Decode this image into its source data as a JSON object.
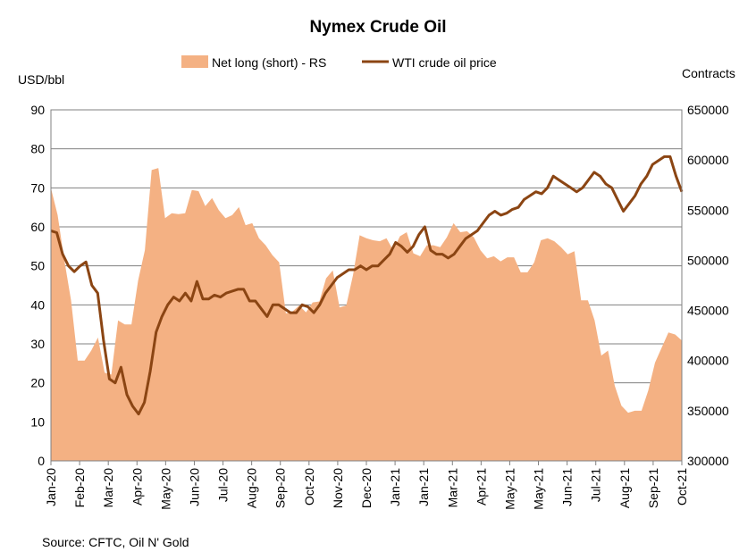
{
  "chart_data": {
    "type": "area+line",
    "title": "Nymex Crude Oil",
    "source": "Source: CFTC, Oil N' Gold",
    "y_left": {
      "label": "USD/bbl",
      "min": 0,
      "max": 90,
      "step": 10
    },
    "y_right": {
      "label": "Contracts",
      "min": 300000,
      "max": 650000,
      "step": 50000
    },
    "x_tick_labels": [
      "Jan-20",
      "Feb-20",
      "Mar-20",
      "Apr-20",
      "May-20",
      "Jun-20",
      "Jul-20",
      "Aug-20",
      "Sep-20",
      "Oct-20",
      "Nov-20",
      "Dec-20",
      "Jan-21",
      "Jan-21",
      "Mar-21",
      "Apr-21",
      "May-21",
      "May-21",
      "Jun-21",
      "Jul-21",
      "Aug-21",
      "Sep-21",
      "Oct-21"
    ],
    "legend": {
      "placement": "top-center"
    },
    "series": [
      {
        "name": "Net long (short) - RS",
        "kind": "area",
        "axis": "right",
        "color": "#f4b183",
        "values": [
          572000,
          545000,
          500000,
          460000,
          400000,
          400000,
          410000,
          423000,
          388000,
          386000,
          440000,
          436000,
          436000,
          480000,
          510000,
          590000,
          592000,
          542000,
          547000,
          546000,
          547000,
          570000,
          569000,
          554000,
          562000,
          550000,
          542000,
          545000,
          553000,
          535000,
          537000,
          522000,
          515000,
          505000,
          498000,
          447000,
          449000,
          455000,
          448000,
          458000,
          459000,
          482000,
          490000,
          453000,
          455000,
          485000,
          525000,
          522000,
          520000,
          519000,
          522000,
          510000,
          524000,
          528000,
          507000,
          504000,
          515000,
          515000,
          513000,
          523000,
          537000,
          528000,
          529000,
          523000,
          510000,
          502000,
          504000,
          499000,
          503000,
          503000,
          488000,
          488000,
          498000,
          520000,
          522000,
          519000,
          513000,
          506000,
          509000,
          460000,
          460000,
          440000,
          405000,
          410000,
          375000,
          355000,
          348000,
          350000,
          350000,
          370000,
          398000,
          413000,
          428000,
          426000,
          420000
        ]
      },
      {
        "name": "WTI crude oil price",
        "kind": "line",
        "axis": "left",
        "color": "#8b4513",
        "values": [
          59,
          58.5,
          53,
          50,
          48.5,
          50,
          51,
          45,
          43,
          31,
          21,
          20,
          24,
          17,
          14,
          12,
          15,
          23,
          33,
          37,
          40,
          42,
          41,
          43,
          41,
          46,
          41.5,
          41.5,
          42.5,
          42,
          43,
          43.5,
          44,
          44,
          41,
          41,
          39,
          37,
          40,
          40,
          39,
          38,
          38,
          40,
          39.5,
          38,
          40,
          43,
          45,
          47,
          48,
          49,
          49,
          50,
          49,
          50,
          50,
          51.5,
          53,
          56,
          55,
          53.5,
          55,
          58,
          60,
          54,
          53,
          53,
          52,
          53,
          55,
          57,
          58,
          59,
          61,
          63,
          64,
          63,
          63.5,
          64.5,
          65,
          67,
          68,
          69,
          68.5,
          70,
          73,
          72,
          71,
          70,
          69,
          70,
          72,
          74,
          73,
          71,
          70,
          67,
          64,
          66,
          68,
          71,
          73,
          76,
          77,
          78,
          78,
          73,
          69
        ]
      }
    ]
  }
}
